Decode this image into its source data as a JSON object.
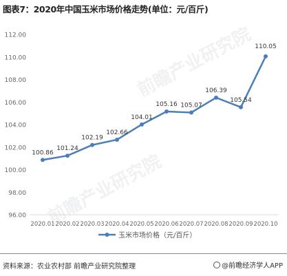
{
  "title": "图表7：2020年中国玉米市场价格走势(单位：元/百斤)",
  "source": "资料来源：农业农村部 前瞻产业研究院整理",
  "brand": "@前瞻经济学人APP",
  "watermark": "前瞻产业研究院",
  "chart_data": {
    "type": "line",
    "categories": [
      "2020.01",
      "2020.02",
      "2020.03",
      "2020.04",
      "2020.05",
      "2020.06",
      "2020.07",
      "2020.08",
      "2020.09",
      "2020.10"
    ],
    "series": [
      {
        "name": "玉米市场价格（元/百斤）",
        "values": [
          100.86,
          101.24,
          102.19,
          102.66,
          104.01,
          105.16,
          105.07,
          106.39,
          105.54,
          110.05
        ],
        "labels": [
          "100.86",
          "101.24",
          "102.19",
          "102.66",
          "104.01",
          "105.16",
          "105.07",
          "106.39",
          "105.54",
          "110.05"
        ]
      }
    ],
    "yticks": [
      "112.00",
      "110.00",
      "108.00",
      "106.00",
      "104.00",
      "102.00",
      "100.00",
      "98.00",
      "96.00"
    ],
    "ylim": [
      96,
      112
    ],
    "grid": false,
    "legend": "bottom",
    "line_color": "#4a7ebb"
  }
}
